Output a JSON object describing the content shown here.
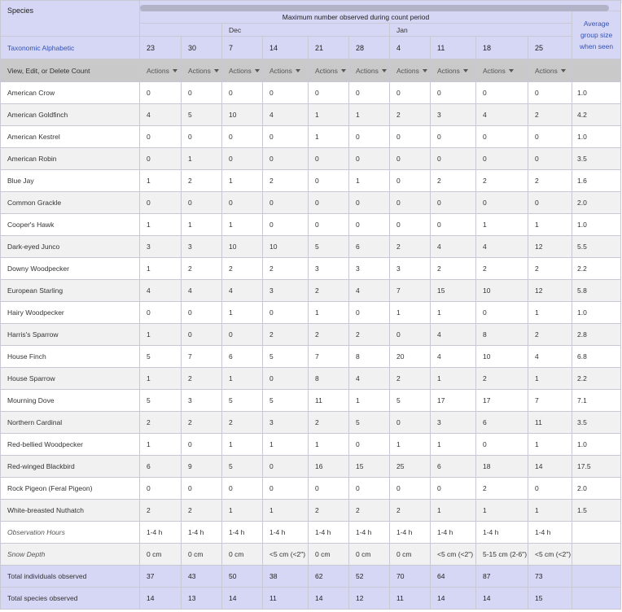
{
  "header": {
    "species_label": "Species",
    "taxonomic_link": "Taxonomic Alphabetic",
    "max_label": "Maximum number observed during count period",
    "months": [
      "Dec",
      "Jan"
    ],
    "days": [
      "23",
      "30",
      "7",
      "14",
      "21",
      "28",
      "4",
      "11",
      "18",
      "25"
    ],
    "avg_label_lines": [
      "Average",
      "group size",
      "when seen"
    ]
  },
  "actions_row": {
    "label": "View, Edit, or Delete Count",
    "action_label": "Actions"
  },
  "rows": [
    {
      "name": "American Crow",
      "counts": [
        "0",
        "0",
        "0",
        "0",
        "0",
        "0",
        "0",
        "0",
        "0",
        "0"
      ],
      "avg": "1.0"
    },
    {
      "name": "American Goldfinch",
      "counts": [
        "4",
        "5",
        "10",
        "4",
        "1",
        "1",
        "2",
        "3",
        "4",
        "2"
      ],
      "avg": "4.2"
    },
    {
      "name": "American Kestrel",
      "counts": [
        "0",
        "0",
        "0",
        "0",
        "1",
        "0",
        "0",
        "0",
        "0",
        "0"
      ],
      "avg": "1.0"
    },
    {
      "name": "American Robin",
      "counts": [
        "0",
        "1",
        "0",
        "0",
        "0",
        "0",
        "0",
        "0",
        "0",
        "0"
      ],
      "avg": "3.5"
    },
    {
      "name": "Blue Jay",
      "counts": [
        "1",
        "2",
        "1",
        "2",
        "0",
        "1",
        "0",
        "2",
        "2",
        "2"
      ],
      "avg": "1.6"
    },
    {
      "name": "Common Grackle",
      "counts": [
        "0",
        "0",
        "0",
        "0",
        "0",
        "0",
        "0",
        "0",
        "0",
        "0"
      ],
      "avg": "2.0"
    },
    {
      "name": "Cooper's Hawk",
      "counts": [
        "1",
        "1",
        "1",
        "0",
        "0",
        "0",
        "0",
        "0",
        "1",
        "1"
      ],
      "avg": "1.0"
    },
    {
      "name": "Dark-eyed Junco",
      "counts": [
        "3",
        "3",
        "10",
        "10",
        "5",
        "6",
        "2",
        "4",
        "4",
        "12"
      ],
      "avg": "5.5"
    },
    {
      "name": "Downy Woodpecker",
      "counts": [
        "1",
        "2",
        "2",
        "2",
        "3",
        "3",
        "3",
        "2",
        "2",
        "2"
      ],
      "avg": "2.2"
    },
    {
      "name": "European Starling",
      "counts": [
        "4",
        "4",
        "4",
        "3",
        "2",
        "4",
        "7",
        "15",
        "10",
        "12"
      ],
      "avg": "5.8"
    },
    {
      "name": "Hairy Woodpecker",
      "counts": [
        "0",
        "0",
        "1",
        "0",
        "1",
        "0",
        "1",
        "1",
        "0",
        "1"
      ],
      "avg": "1.0"
    },
    {
      "name": "Harris's Sparrow",
      "counts": [
        "1",
        "0",
        "0",
        "2",
        "2",
        "2",
        "0",
        "4",
        "8",
        "2"
      ],
      "avg": "2.8"
    },
    {
      "name": "House Finch",
      "counts": [
        "5",
        "7",
        "6",
        "5",
        "7",
        "8",
        "20",
        "4",
        "10",
        "4"
      ],
      "avg": "6.8"
    },
    {
      "name": "House Sparrow",
      "counts": [
        "1",
        "2",
        "1",
        "0",
        "8",
        "4",
        "2",
        "1",
        "2",
        "1"
      ],
      "avg": "2.2"
    },
    {
      "name": "Mourning Dove",
      "counts": [
        "5",
        "3",
        "5",
        "5",
        "11",
        "1",
        "5",
        "17",
        "17",
        "7"
      ],
      "avg": "7.1"
    },
    {
      "name": "Northern Cardinal",
      "counts": [
        "2",
        "2",
        "2",
        "3",
        "2",
        "5",
        "0",
        "3",
        "6",
        "11"
      ],
      "avg": "3.5"
    },
    {
      "name": "Red-bellied Woodpecker",
      "counts": [
        "1",
        "0",
        "1",
        "1",
        "1",
        "0",
        "1",
        "1",
        "0",
        "1"
      ],
      "avg": "1.0"
    },
    {
      "name": "Red-winged Blackbird",
      "counts": [
        "6",
        "9",
        "5",
        "0",
        "16",
        "15",
        "25",
        "6",
        "18",
        "14"
      ],
      "avg": "17.5"
    },
    {
      "name": "Rock Pigeon (Feral Pigeon)",
      "counts": [
        "0",
        "0",
        "0",
        "0",
        "0",
        "0",
        "0",
        "0",
        "2",
        "0"
      ],
      "avg": "2.0"
    },
    {
      "name": "White-breasted Nuthatch",
      "counts": [
        "2",
        "2",
        "1",
        "1",
        "2",
        "2",
        "2",
        "1",
        "1",
        "1"
      ],
      "avg": "1.5"
    }
  ],
  "meta_rows": [
    {
      "name": "Observation Hours",
      "values": [
        "1-4 h",
        "1-4 h",
        "1-4 h",
        "1-4 h",
        "1-4 h",
        "1-4 h",
        "1-4 h",
        "1-4 h",
        "1-4 h",
        "1-4 h"
      ],
      "avg": ""
    },
    {
      "name": "Snow Depth",
      "values": [
        "0 cm",
        "0 cm",
        "0 cm",
        "<5 cm (<2\")",
        "0 cm",
        "0 cm",
        "0 cm",
        "<5 cm (<2\")",
        "5-15 cm (2-6\")",
        "<5 cm (<2\")"
      ],
      "avg": ""
    }
  ],
  "totals": [
    {
      "name": "Total individuals observed",
      "values": [
        "37",
        "43",
        "50",
        "38",
        "62",
        "52",
        "70",
        "64",
        "87",
        "73"
      ],
      "avg": ""
    },
    {
      "name": "Total species observed",
      "values": [
        "14",
        "13",
        "14",
        "11",
        "14",
        "12",
        "11",
        "14",
        "14",
        "15"
      ],
      "avg": ""
    }
  ],
  "colors": {
    "header_bg": "#d6d6f5",
    "link": "#3454b4",
    "actions_bg": "#c9c9c9",
    "row_alt": "#f1f1f1"
  }
}
